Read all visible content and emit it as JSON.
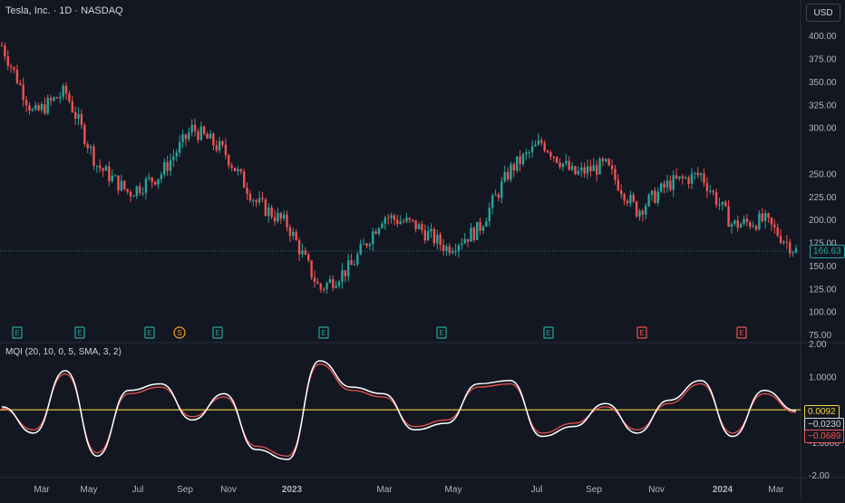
{
  "header": {
    "title": "Tesla, Inc. · 1D · NASDAQ",
    "currency": "USD"
  },
  "indicator": {
    "title": "MQI (20, 10, 0, 5, SMA, 3, 2)"
  },
  "price_axis": {
    "ticks": [
      "400.00",
      "375.00",
      "350.00",
      "325.00",
      "300.00",
      "250.00",
      "225.00",
      "200.00",
      "175.00",
      "150.00",
      "125.00",
      "100.00",
      "75.00"
    ]
  },
  "ind_axis": {
    "ticks": [
      "2.00",
      "1.0000",
      "-1.0000",
      "-2.00"
    ]
  },
  "time_axis": {
    "labels": [
      "Mar",
      "May",
      "Jul",
      "Sep",
      "Nov",
      "2023",
      "Mar",
      "May",
      "Jul",
      "Sep",
      "Nov",
      "2024",
      "Mar"
    ]
  },
  "last_price": "166.63",
  "ind_values": {
    "zero": "0.0092",
    "white": "−0.0230",
    "red": "−0.0689"
  },
  "events": [
    "E",
    "E",
    "E",
    "S",
    "E",
    "E",
    "E",
    "E",
    "E",
    "E"
  ],
  "colors": {
    "bg": "#131722",
    "up": "#26a69a",
    "down": "#ef5350",
    "yellow": "#f5d442",
    "grid": "#2a2e39"
  },
  "chart_data": [
    {
      "type": "candlestick",
      "x": [
        "2022-02",
        "2022-03",
        "2022-04",
        "2022-05",
        "2022-06",
        "2022-07",
        "2022-08",
        "2022-09",
        "2022-10",
        "2022-11",
        "2022-12",
        "2023-01",
        "2023-02",
        "2023-03",
        "2023-04",
        "2023-05",
        "2023-06",
        "2023-07",
        "2023-08",
        "2023-09",
        "2023-10",
        "2023-11",
        "2023-12",
        "2024-01",
        "2024-02",
        "2024-03"
      ],
      "close": [
        390,
        315,
        340,
        260,
        230,
        250,
        300,
        275,
        220,
        195,
        125,
        150,
        205,
        195,
        170,
        190,
        255,
        285,
        250,
        260,
        210,
        240,
        250,
        195,
        200,
        166.63
      ],
      "ylim": [
        75,
        410
      ]
    },
    {
      "type": "line",
      "title": "MQI (20, 10, 0, 5, SMA, 3, 2)",
      "series": [
        {
          "values": [
            0.1,
            -0.7,
            1.2,
            -1.4,
            0.6,
            0.8,
            -0.3,
            0.5,
            -1.2,
            -1.5,
            1.5,
            0.7,
            0.5,
            -0.6,
            -0.4,
            0.8,
            0.9,
            -0.8,
            -0.5,
            0.2,
            -0.7,
            0.3,
            0.9,
            -0.8,
            0.6,
            -0.02
          ]
        },
        {
          "values": [
            0.05,
            -0.6,
            1.1,
            -1.3,
            0.5,
            0.7,
            -0.2,
            0.4,
            -1.1,
            -1.4,
            1.4,
            0.6,
            0.4,
            -0.5,
            -0.3,
            0.7,
            0.8,
            -0.7,
            -0.4,
            0.1,
            -0.6,
            0.2,
            0.8,
            -0.7,
            0.5,
            -0.07
          ]
        }
      ],
      "ylim": [
        -2,
        2
      ]
    }
  ]
}
